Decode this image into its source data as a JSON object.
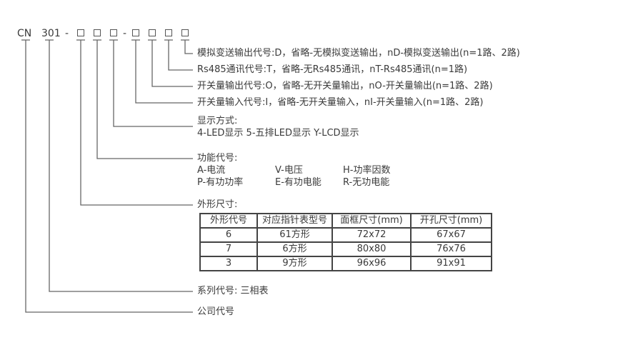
{
  "code": {
    "prefix": "CN",
    "series": "301",
    "dash": "-",
    "placeholder": "□"
  },
  "labels": {
    "analog_output": "模拟变送输出代号:D，省略-无模拟变送输出，nD-模拟变送输出(n=1路、2路)",
    "rs485": "Rs485通讯代号:T，省略-无Rs485通讯，nT-Rs485通讯(n=1路)",
    "switch_output": "开关量输出代号:O，省略-无开关量输出，nO-开关量输出(n=1路、2路)",
    "switch_input": "开关量输入代号:I，省略-无开关量输入，nI-开关量输入(n=1路、2路)",
    "display_title": "显示方式:",
    "display_options": "4-LED显示 5-五排LED显示 Y-LCD显示",
    "function_title": "功能代号:",
    "functions": [
      [
        "A-电流",
        "V-电压",
        "H-功率因数"
      ],
      [
        "P-有功功率",
        "E-有功电能",
        "R-无功电能"
      ]
    ],
    "size_title": "外形尺寸:",
    "series_label": "系列代号: 三相表",
    "company_label": "公司代号"
  },
  "table": {
    "headers": [
      "外形代号",
      "对应指针表型号",
      "面框尺寸(mm)",
      "开孔尺寸(mm)"
    ],
    "rows": [
      [
        "6",
        "61方形",
        "72x72",
        "67x67"
      ],
      [
        "7",
        "6方形",
        "80x80",
        "76x76"
      ],
      [
        "3",
        "9方形",
        "96x96",
        "91x91"
      ]
    ]
  }
}
